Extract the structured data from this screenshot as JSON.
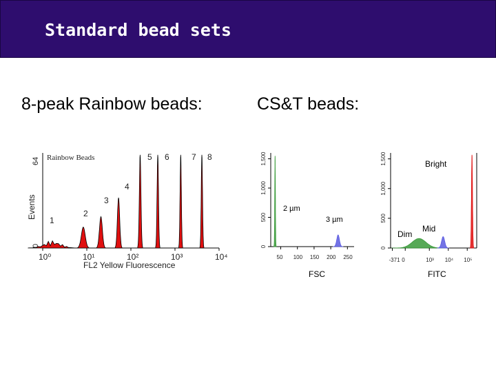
{
  "slide": {
    "title": "Standard bead sets",
    "left_heading": "8-peak Rainbow beads:",
    "right_heading": "CS&T beads:"
  },
  "colors": {
    "title_bg": "#2e0d6e",
    "peak_red": "#e01010",
    "green": "#3a9a3a",
    "blue": "#5a5ae0"
  },
  "chart_data": [
    {
      "id": "rainbow",
      "type": "area",
      "title": "Rainbow Beads",
      "xlabel": "FL2 Yellow Fluorescence",
      "ylabel": "Events",
      "y_max_label": "64",
      "y_zero_label": "0",
      "x_scale": "log",
      "xlim_decades": [
        0,
        4
      ],
      "x_tick_labels": [
        "10⁰",
        "10¹",
        "10²",
        "10³",
        "10⁴"
      ],
      "peak_labels": [
        "1",
        "2",
        "3",
        "4",
        "5",
        "6",
        "7",
        "8"
      ],
      "peaks": [
        {
          "label": "1",
          "center_decade": 0.22,
          "height": 0.08,
          "width": 0.25
        },
        {
          "label": "2",
          "center_decade": 0.92,
          "height": 0.22,
          "width": 0.06
        },
        {
          "label": "3",
          "center_decade": 1.32,
          "height": 0.33,
          "width": 0.045
        },
        {
          "label": "4",
          "center_decade": 1.72,
          "height": 0.53,
          "width": 0.035
        },
        {
          "label": "5",
          "center_decade": 2.21,
          "height": 0.98,
          "width": 0.025
        },
        {
          "label": "6",
          "center_decade": 2.61,
          "height": 0.98,
          "width": 0.022
        },
        {
          "label": "7",
          "center_decade": 3.13,
          "height": 0.98,
          "width": 0.02
        },
        {
          "label": "8",
          "center_decade": 3.61,
          "height": 0.98,
          "width": 0.02
        }
      ]
    },
    {
      "id": "fsc",
      "type": "area",
      "xlabel": "FSC",
      "ylim": [
        0,
        1600
      ],
      "y_ticks": [
        "0",
        "500",
        "1,000",
        "1,500"
      ],
      "x_ticks": [
        "50",
        "100",
        "150",
        "200",
        "250"
      ],
      "xlim": [
        20,
        270
      ],
      "series": [
        {
          "name": "2 µm",
          "center": 33,
          "sd": 1.0,
          "peak": 1550,
          "color": "green",
          "tail_left": 1
        },
        {
          "name": "3 µm",
          "center": 222,
          "sd": 4.0,
          "peak": 200,
          "color": "blue"
        }
      ]
    },
    {
      "id": "fitc",
      "type": "area",
      "xlabel": "FITC",
      "y_ticks": [
        "0",
        "500",
        "1,000",
        "1,500"
      ],
      "x_ticks": [
        "-371",
        "0",
        "10³",
        "10⁴",
        "10⁵"
      ],
      "series": [
        {
          "name": "Dim",
          "color": "green"
        },
        {
          "name": "Mid",
          "color": "blue"
        },
        {
          "name": "Bright",
          "color": "red"
        }
      ]
    }
  ]
}
